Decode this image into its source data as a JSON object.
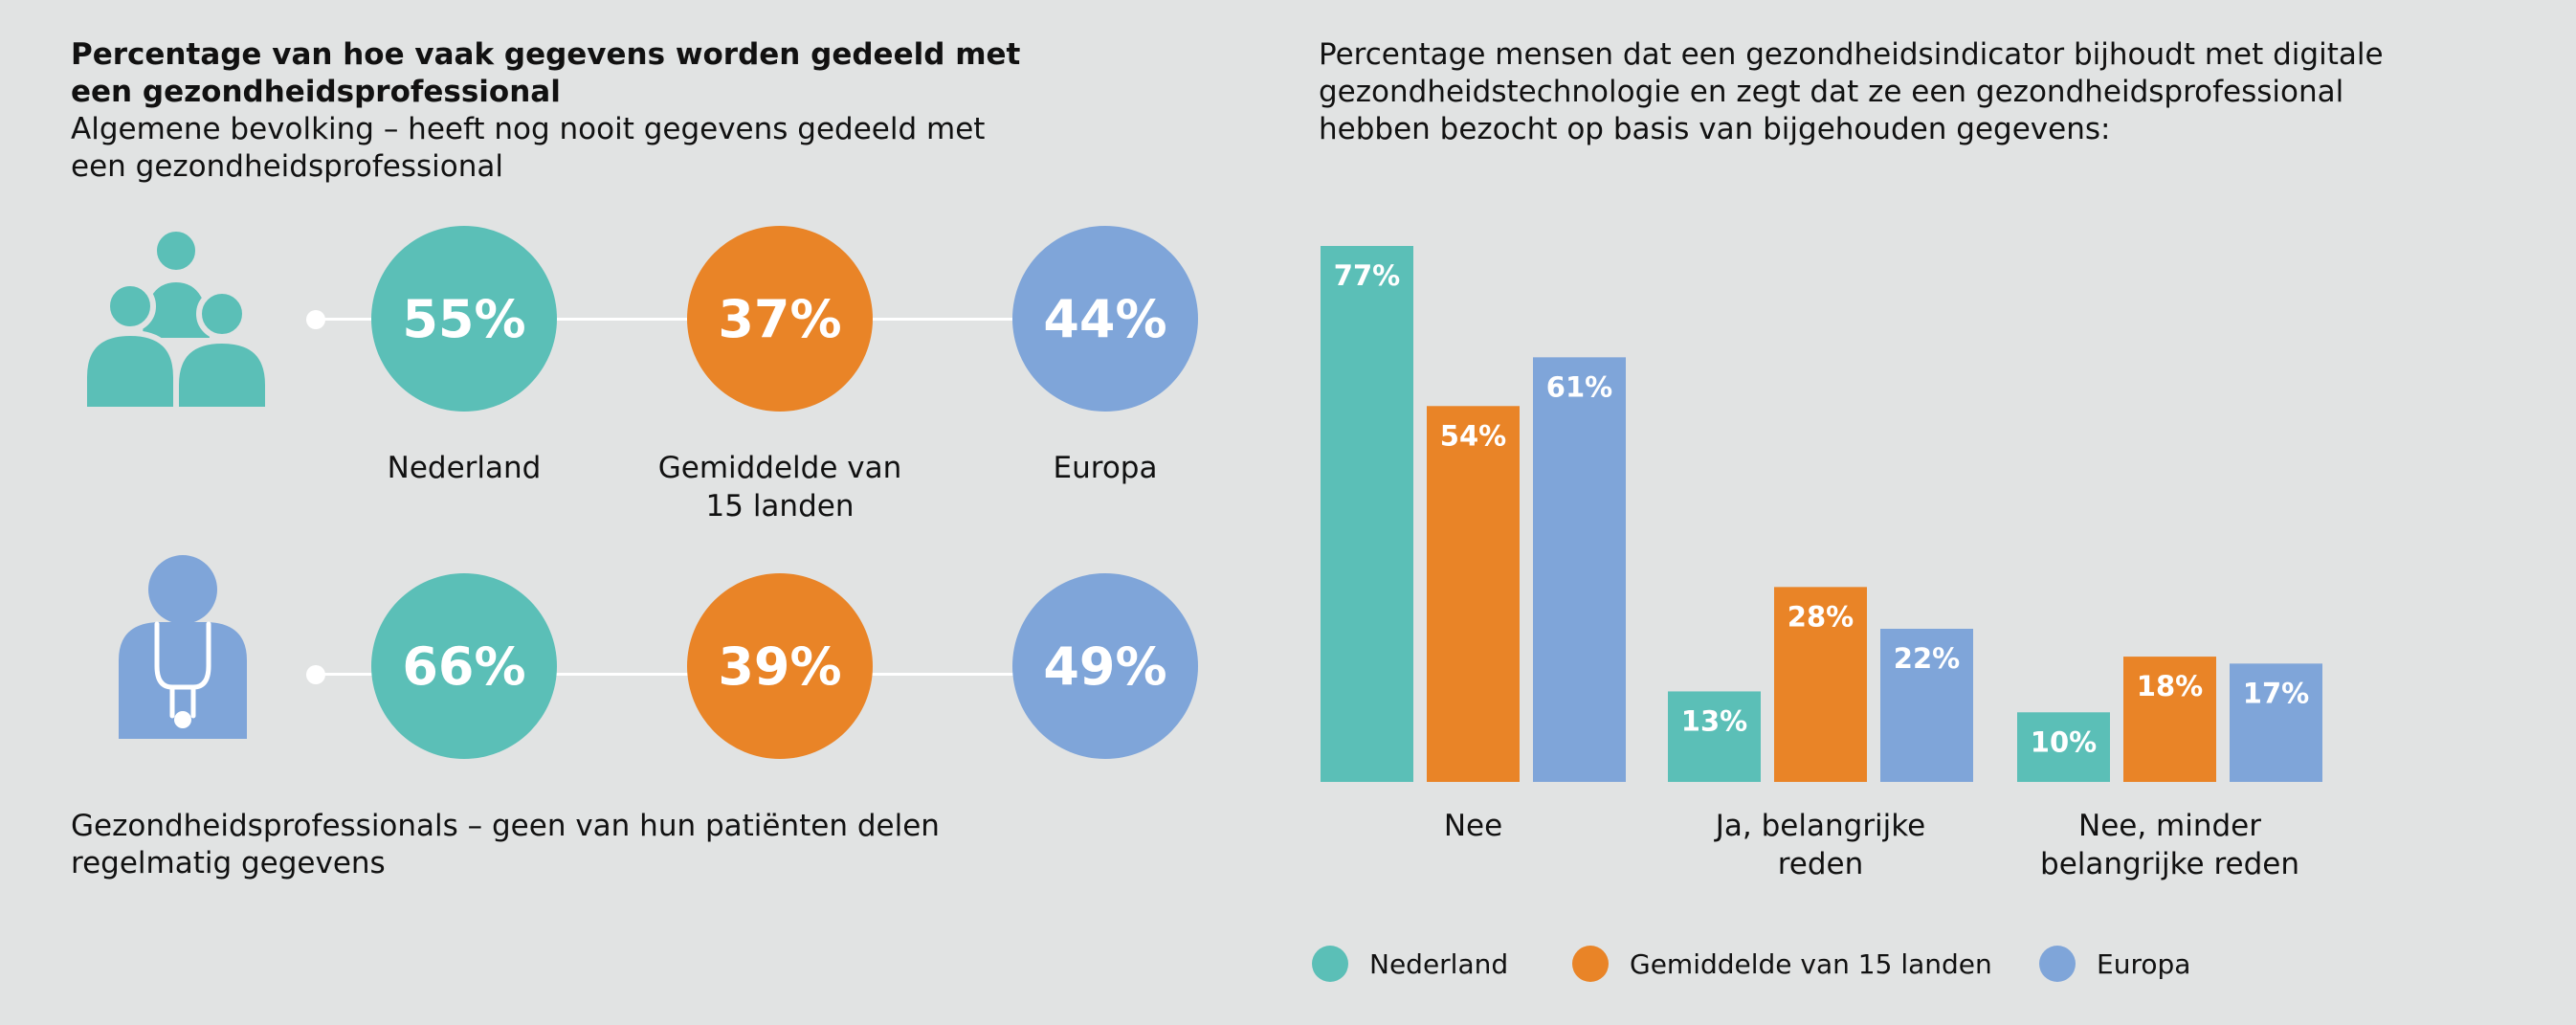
{
  "colors": {
    "nederland": "#5bbfb7",
    "gemiddelde": "#e98427",
    "europa": "#7fa5d9",
    "background": "#e1e3e3"
  },
  "left": {
    "title": "Percentage van hoe vaak gegevens worden gedeeld met een gezondheidsprofessional",
    "subtitle": "Algemene bevolking – heeft nog nooit gegevens gedeeld met een gezondheidsprofessional",
    "labels": {
      "nederland": "Nederland",
      "gemiddelde": "Gemiddelde van 15 landen",
      "europa": "Europa"
    },
    "row1": {
      "icon": "group-people-icon",
      "nederland": "55%",
      "gemiddelde": "37%",
      "europa": "44%"
    },
    "row2": {
      "icon": "doctor-stethoscope-icon",
      "nederland": "66%",
      "gemiddelde": "39%",
      "europa": "49%"
    },
    "footer": "Gezondheidsprofessionals – geen van hun patiënten delen regelmatig gegevens"
  },
  "right": {
    "title": "Percentage mensen dat een gezondheidsindicator bijhoudt met digitale gezondheidstechnologie en zegt dat ze een gezondheidsprofessional hebben bezocht op basis van bijgehouden gegevens:"
  },
  "chart_data": {
    "type": "bar",
    "categories": [
      "Nee",
      "Ja, belangrijke reden",
      "Nee, minder belangrijke reden"
    ],
    "series": [
      {
        "name": "Nederland",
        "values": [
          77,
          13,
          10
        ]
      },
      {
        "name": "Gemiddelde van 15 landen",
        "values": [
          54,
          28,
          18
        ]
      },
      {
        "name": "Europa",
        "values": [
          61,
          22,
          17
        ]
      }
    ],
    "value_suffix": "%",
    "legend_position": "bottom",
    "grid": false,
    "ylim": [
      0,
      77
    ]
  }
}
